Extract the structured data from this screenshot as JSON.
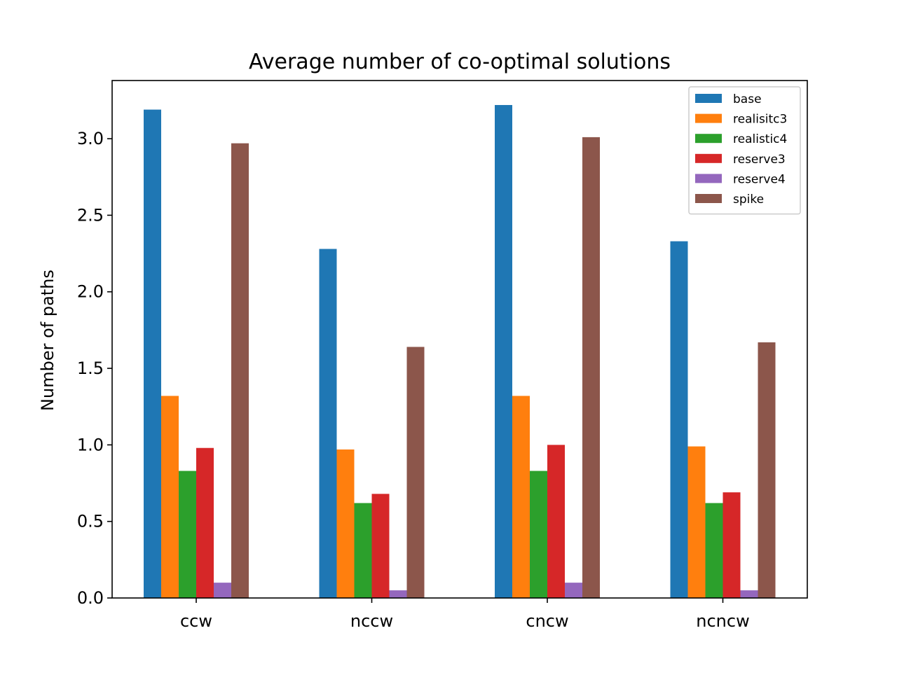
{
  "chart_data": {
    "type": "bar",
    "title": "Average number of co-optimal solutions",
    "xlabel": "",
    "ylabel": "Number of paths",
    "categories": [
      "ccw",
      "nccw",
      "cncw",
      "ncncw"
    ],
    "ylim": [
      0,
      3.38
    ],
    "yticks": [
      "0.0",
      "0.5",
      "1.0",
      "1.5",
      "2.0",
      "2.5",
      "3.0"
    ],
    "grid": false,
    "legend_position": "top-right",
    "series": [
      {
        "name": "base",
        "color": "#1f77b4",
        "values": [
          3.19,
          2.28,
          3.22,
          2.33
        ]
      },
      {
        "name": "realisitc3",
        "color": "#ff7f0e",
        "values": [
          1.32,
          0.97,
          1.32,
          0.99
        ]
      },
      {
        "name": "realistic4",
        "color": "#2ca02c",
        "values": [
          0.83,
          0.62,
          0.83,
          0.62
        ]
      },
      {
        "name": "reserve3",
        "color": "#d62728",
        "values": [
          0.98,
          0.68,
          1.0,
          0.69
        ]
      },
      {
        "name": "reserve4",
        "color": "#9467bd",
        "values": [
          0.1,
          0.05,
          0.1,
          0.05
        ]
      },
      {
        "name": "spike",
        "color": "#8c564b",
        "values": [
          2.97,
          1.64,
          3.01,
          1.67
        ]
      }
    ]
  }
}
